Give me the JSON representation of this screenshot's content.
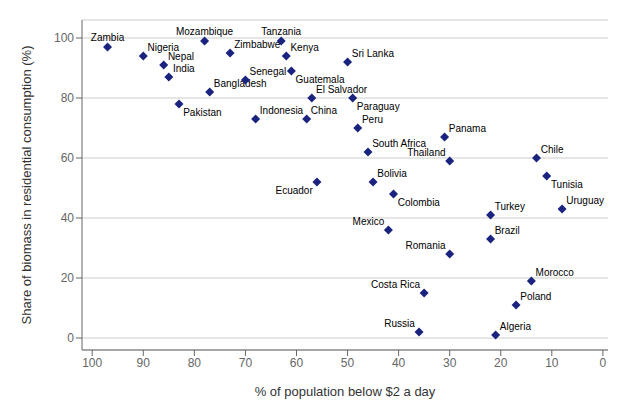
{
  "chart_data": {
    "type": "scatter",
    "xlabel": "% of population below $2 a day",
    "ylabel": "Share of biomass in residential consumption (%)",
    "color": "#1a237e",
    "marker": "diamond",
    "x": [
      97,
      90,
      86,
      85,
      83,
      78,
      77,
      73,
      70,
      68,
      63,
      62,
      61,
      57,
      58,
      50,
      49,
      48,
      56,
      46,
      45,
      41,
      42,
      31,
      30,
      30,
      35,
      36,
      22,
      22,
      13,
      11,
      8,
      14,
      17,
      21
    ],
    "values": [
      97,
      94,
      91,
      87,
      78,
      99,
      82,
      95,
      86,
      73,
      99,
      94,
      89,
      80,
      73,
      92,
      80,
      70,
      52,
      62,
      52,
      48,
      36,
      67,
      59,
      28,
      15,
      2,
      41,
      33,
      60,
      54,
      43,
      19,
      11,
      1
    ],
    "annotations": [
      "Zambia",
      "Nigeria",
      "Nepal",
      "India",
      "Pakistan",
      "Mozambique",
      "Bangladesh",
      "Zimbabwe",
      "Senegal",
      "Indonesia",
      "Tanzania",
      "Kenya",
      "Guatemala",
      "El Salvador",
      "China",
      "Sri Lanka",
      "Paraguay",
      "Peru",
      "Ecuador",
      "South Africa",
      "Bolivia",
      "Colombia",
      "Mexico",
      "Panama",
      "Thailand",
      "Romania",
      "Costa Rica",
      "Russia",
      "Turkey",
      "Brazil",
      "Chile",
      "Tunisia",
      "Uruguay",
      "Morocco",
      "Poland",
      "Algeria"
    ],
    "xlim": [
      102,
      -1
    ],
    "ylim": [
      -4,
      106
    ],
    "xticks": [
      100,
      90,
      80,
      70,
      60,
      50,
      40,
      30,
      20,
      10,
      0
    ],
    "yticks": [
      0,
      20,
      40,
      60,
      80,
      100
    ],
    "grid": true
  }
}
